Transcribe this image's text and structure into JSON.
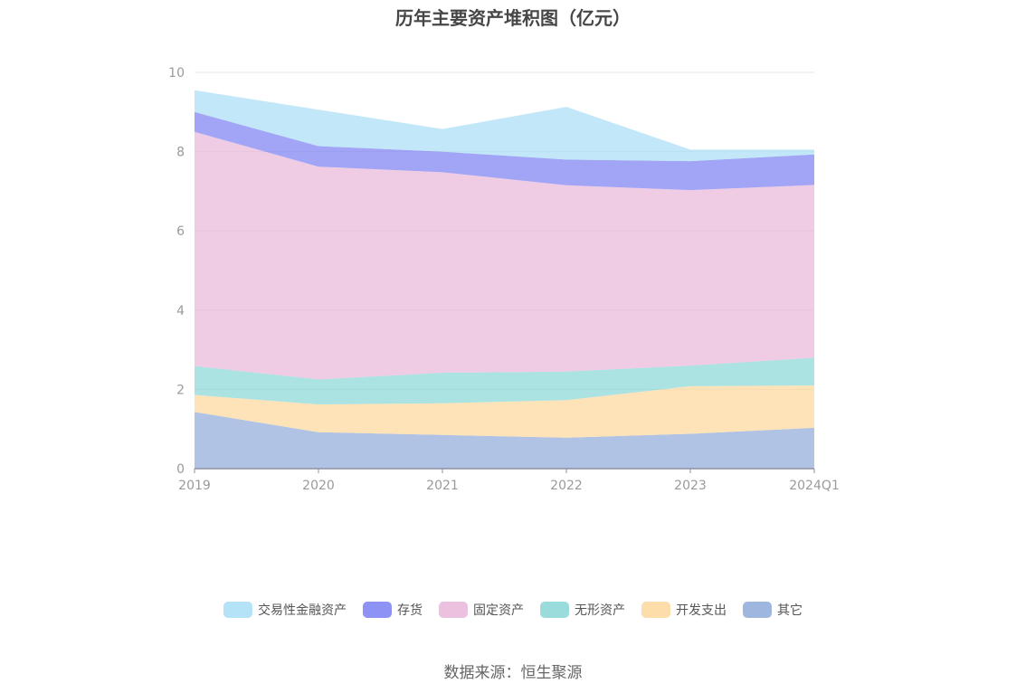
{
  "chart_data": {
    "type": "area",
    "title": "历年主要资产堆积图（亿元）",
    "categories": [
      "2019",
      "2020",
      "2021",
      "2022",
      "2023",
      "2024Q1"
    ],
    "ylim": [
      0,
      10
    ],
    "yticks": [
      0,
      2,
      4,
      6,
      8,
      10
    ],
    "stacked": true,
    "grid": true,
    "legend_position": "bottom",
    "series": [
      {
        "name": "其它",
        "color": "#8eaad9",
        "values": [
          1.43,
          0.92,
          0.85,
          0.78,
          0.88,
          1.03
        ]
      },
      {
        "name": "开发支出",
        "color": "#fdd79b",
        "values": [
          0.43,
          0.7,
          0.8,
          0.95,
          1.2,
          1.07
        ]
      },
      {
        "name": "无形资产",
        "color": "#88d6d6",
        "values": [
          0.73,
          0.63,
          0.77,
          0.72,
          0.52,
          0.7
        ]
      },
      {
        "name": "固定资产",
        "color": "#e8b6d9",
        "values": [
          5.91,
          5.37,
          5.06,
          4.7,
          4.43,
          4.36
        ]
      },
      {
        "name": "存货",
        "color": "#7a7ff2",
        "values": [
          0.5,
          0.52,
          0.52,
          0.65,
          0.73,
          0.77
        ]
      },
      {
        "name": "交易性金融资产",
        "color": "#a7ddf6",
        "values": [
          0.55,
          0.92,
          0.57,
          1.33,
          0.29,
          0.12
        ]
      }
    ]
  },
  "legend_order": [
    "交易性金融资产",
    "存货",
    "固定资产",
    "无形资产",
    "开发支出",
    "其它"
  ],
  "source": "数据来源：恒生聚源"
}
